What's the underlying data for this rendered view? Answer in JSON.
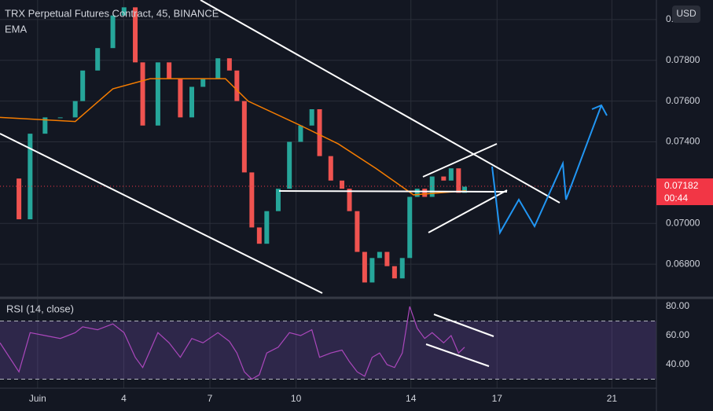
{
  "chart_data": [
    {
      "type": "candlestick",
      "title": "TRX Perpetual Futures Contract, 45, BINANCE",
      "currency": "USD",
      "x": [
        -0.31,
        0.35,
        0.74,
        1.26,
        1.79,
        2.31,
        2.57,
        3.09,
        3.62,
        4.01,
        4.4,
        4.66,
        5.19,
        5.58,
        5.97,
        6.37,
        6.76,
        7.28,
        7.68,
        7.94,
        8.2,
        8.46,
        8.72,
        8.98,
        9.38,
        9.77,
        10.16,
        10.55,
        10.82,
        11.21,
        11.6,
        11.86,
        12.13,
        12.39,
        12.65,
        12.91,
        13.17,
        13.43,
        13.7,
        13.96,
        14.22,
        14.48,
        14.74,
        15.14,
        15.4,
        15.66,
        15.87
      ],
      "series": [
        {
          "color_up": "#26a69a",
          "color_down": "#ef5350",
          "values": [
            0.0722,
            0.0702,
            0.0744,
            0.0752,
            0.0752,
            0.076,
            0.0775,
            0.0786,
            0.0802,
            0.0806,
            0.0779,
            0.0748,
            0.0779,
            0.0771,
            0.0752,
            0.0767,
            0.0771,
            0.0781,
            0.0775,
            0.076,
            0.0725,
            0.0698,
            0.069,
            0.0706,
            0.0717,
            0.074,
            0.0748,
            0.0756,
            0.0733,
            0.0721,
            0.0717,
            0.0706,
            0.0686,
            0.0671,
            0.0683,
            0.0686,
            0.0679,
            0.0673,
            0.0683,
            0.0713,
            0.0717,
            0.0713,
            0.0723,
            0.0721,
            0.0727,
            0.0715,
            0.0718
          ]
        },
        {
          "name": "EMA",
          "color": "#f57c00",
          "x": [
            -0.31,
            2.31,
            3.62,
            4.92,
            7.54,
            8.33,
            10.16,
            11.47,
            12.78,
            14.09,
            15.92
          ],
          "values": [
            0.0752,
            0.075,
            0.0766,
            0.0771,
            0.0771,
            0.076,
            0.0748,
            0.0739,
            0.0727,
            0.0714,
            0.0716
          ]
        }
      ],
      "xlim": [
        -0.31,
        22.55
      ],
      "xticks": [
        {
          "value": 1,
          "label": "Juin"
        },
        4,
        7,
        10,
        14,
        17,
        21
      ],
      "ylim": [
        0.0665,
        0.08096
      ],
      "yticks": [
        {
          "value": 0.068,
          "label": "0.06800"
        },
        {
          "value": 0.07,
          "label": "0.07000"
        },
        {
          "value": 0.074,
          "label": "0.07400"
        },
        {
          "value": 0.076,
          "label": "0.07600"
        },
        {
          "value": 0.078,
          "label": "0.07800"
        },
        {
          "value": 0.08,
          "label": "0.08000"
        }
      ],
      "last_price": 0.07182,
      "timer": "00:44",
      "last_color": "#f23645",
      "grid": true
    },
    {
      "type": "line",
      "title": "RSI (14, close)",
      "x": [
        -0.31,
        0.35,
        0.74,
        1.26,
        1.79,
        2.31,
        2.57,
        3.09,
        3.62,
        4.01,
        4.4,
        4.66,
        5.19,
        5.58,
        5.97,
        6.37,
        6.76,
        7.28,
        7.68,
        7.94,
        8.2,
        8.46,
        8.72,
        8.98,
        9.38,
        9.77,
        10.16,
        10.55,
        10.82,
        11.21,
        11.6,
        11.86,
        12.13,
        12.39,
        12.65,
        12.91,
        13.17,
        13.43,
        13.7,
        13.96,
        14.22,
        14.48,
        14.74,
        15.14,
        15.4,
        15.66,
        15.87
      ],
      "series": [
        {
          "color": "#ab47bc",
          "values": [
            55,
            35,
            62,
            60,
            58,
            62,
            66,
            64,
            68,
            62,
            45,
            38,
            62,
            55,
            45,
            58,
            55,
            62,
            56,
            48,
            35,
            30,
            33,
            48,
            52,
            62,
            60,
            64,
            45,
            48,
            50,
            42,
            35,
            32,
            45,
            48,
            40,
            38,
            48,
            80,
            65,
            58,
            62,
            55,
            60,
            48,
            52
          ]
        }
      ],
      "ylim": [
        24.3,
        83.8
      ],
      "yticks": [
        {
          "value": 80,
          "label": "80.00"
        },
        {
          "value": 60,
          "label": "60.00"
        },
        {
          "value": 40,
          "label": "40.00"
        }
      ],
      "bands": [
        30,
        70
      ]
    }
  ]
}
